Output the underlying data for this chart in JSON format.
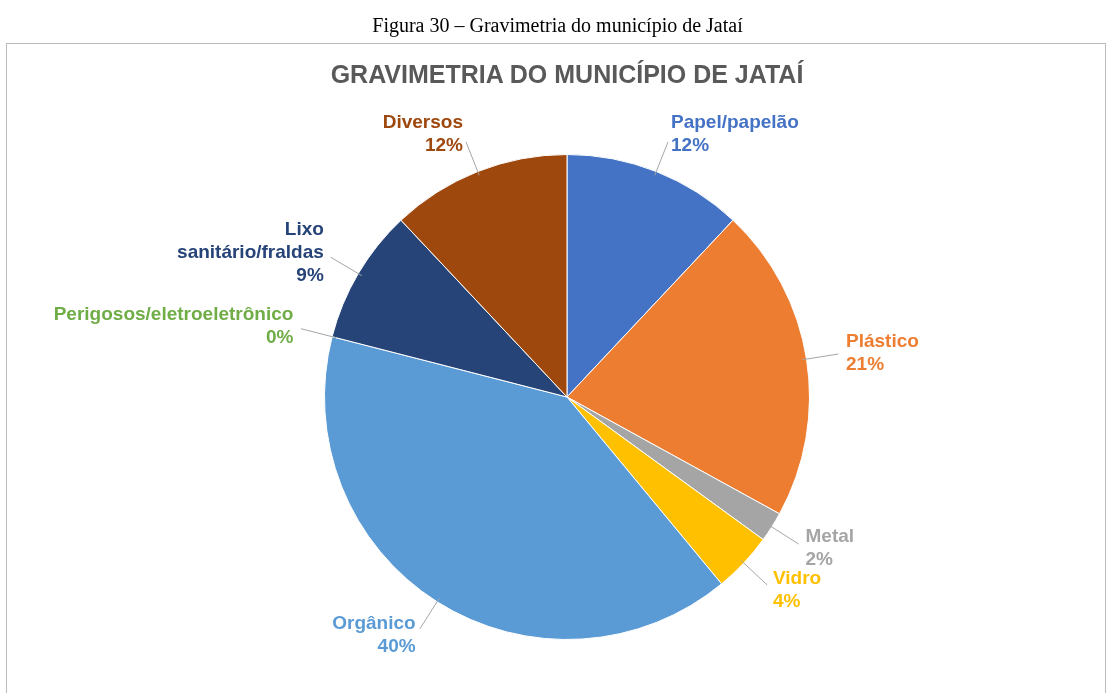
{
  "chart_data": {
    "type": "pie",
    "title": "GRAVIMETRIA DO MUNICÍPIO DE JATAÍ",
    "annotations": [
      "Figura 30 – Gravimetria do município de Jataí"
    ],
    "categories": [
      "Papel/papelão",
      "Plástico",
      "Metal",
      "Vidro",
      "Orgânico",
      "Perigosos/eletroeletrônico",
      "Lixo sanitário/fraldas",
      "Diversos"
    ],
    "values": [
      12,
      21,
      2,
      4,
      40,
      0,
      9,
      12
    ],
    "value_labels": [
      "12%",
      "21%",
      "2%",
      "4%",
      "40%",
      "0%",
      "9%",
      "12%"
    ],
    "colors": [
      "#4472c4",
      "#ed7d31",
      "#a5a5a5",
      "#ffc000",
      "#5b9bd5",
      "#70ad47",
      "#264478",
      "#9e480e"
    ],
    "legend": false
  }
}
